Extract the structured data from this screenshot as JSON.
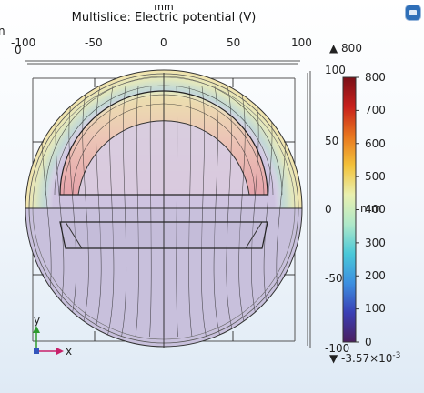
{
  "plot": {
    "title": "Multislice: Electric potential (V)",
    "axis_unit_top": "mm",
    "axis_unit_side": "mm",
    "x_ticks": [
      "-100",
      "-50",
      "0",
      "50",
      "100"
    ],
    "x_tick_values": [
      -100,
      -50,
      0,
      50,
      100
    ],
    "y_ticks": [
      "100",
      "50",
      "0",
      "-50",
      "-100"
    ],
    "y_tick_values": [
      100,
      50,
      0,
      -50,
      -100
    ],
    "corner_zero": "0",
    "corner_n": "n"
  },
  "colorbar": {
    "max_marker": "800",
    "min_marker": "-3.57×10",
    "min_exponent": "-3",
    "tick_labels": [
      "800",
      "700",
      "600",
      "500",
      "400",
      "300",
      "200",
      "100",
      "0"
    ],
    "tick_values": [
      800,
      700,
      600,
      500,
      400,
      300,
      200,
      100,
      0
    ],
    "range": [
      0,
      800
    ],
    "colormap": [
      "#4b1f5e",
      "#3a3fb5",
      "#3c8fe0",
      "#49c8d8",
      "#aee8c9",
      "#e9f0b0",
      "#f3c23a",
      "#e8761e",
      "#c8201c",
      "#7a1018"
    ]
  },
  "triad": {
    "y_label": "y",
    "x_label": "x",
    "y_color": "#2e9a2e",
    "x_color": "#c8206a"
  }
}
